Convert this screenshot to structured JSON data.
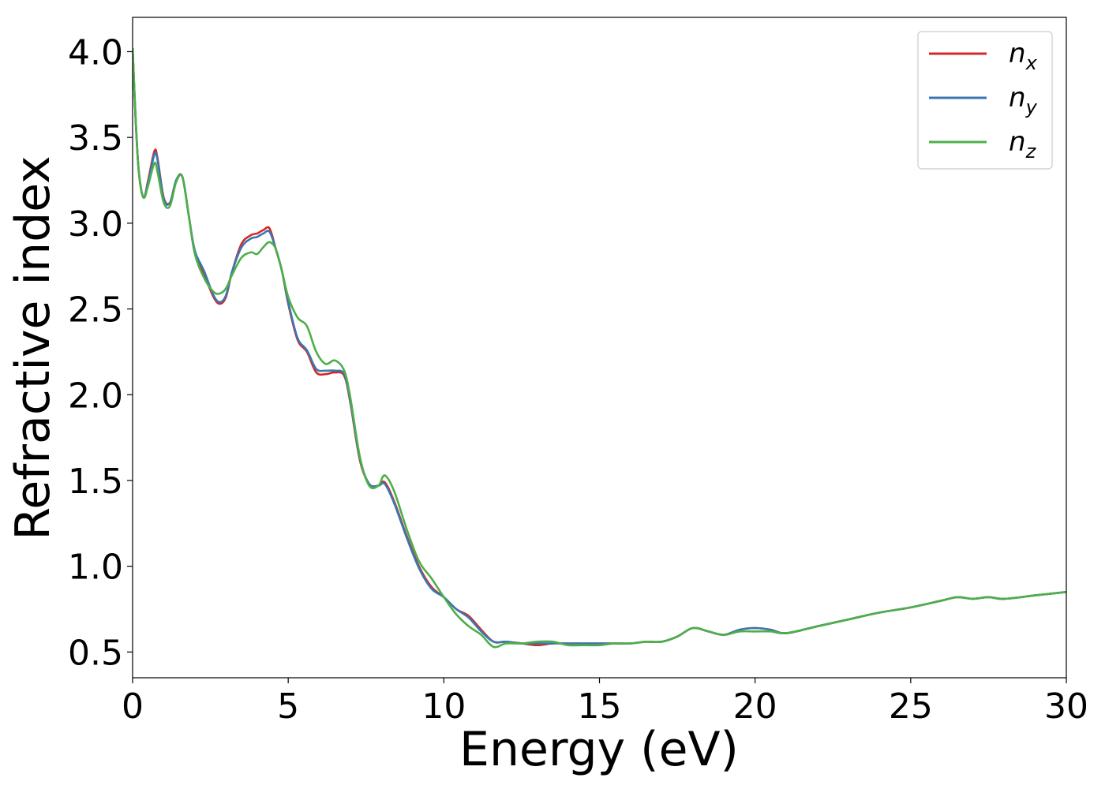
{
  "chart_data": {
    "type": "line",
    "xlabel": "Energy (eV)",
    "ylabel": "Refractive index",
    "xlim": [
      0,
      30
    ],
    "ylim": [
      0.35,
      4.2
    ],
    "xticks": [
      0,
      5,
      10,
      15,
      20,
      25,
      30
    ],
    "xtick_labels": [
      "0",
      "5",
      "10",
      "15",
      "20",
      "25",
      "30"
    ],
    "yticks": [
      0.5,
      1.0,
      1.5,
      2.0,
      2.5,
      3.0,
      3.5,
      4.0
    ],
    "ytick_labels": [
      "0.5",
      "1.0",
      "1.5",
      "2.0",
      "2.5",
      "3.0",
      "3.5",
      "4.0"
    ],
    "grid": false,
    "legend_position": "top-right",
    "series": [
      {
        "name": "n",
        "subscript": "x",
        "color": "#d62728",
        "x": [
          0,
          0.1,
          0.2,
          0.35,
          0.5,
          0.7,
          0.8,
          1.0,
          1.2,
          1.4,
          1.6,
          1.8,
          2.0,
          2.3,
          2.6,
          2.8,
          3.0,
          3.2,
          3.5,
          3.8,
          4.0,
          4.2,
          4.4,
          4.6,
          4.8,
          5.0,
          5.3,
          5.6,
          5.9,
          6.2,
          6.5,
          6.8,
          7.0,
          7.3,
          7.6,
          7.9,
          8.1,
          8.4,
          8.8,
          9.2,
          9.6,
          10.0,
          10.4,
          10.8,
          11.2,
          11.6,
          12.0,
          12.5,
          13.0,
          13.5,
          14.0,
          14.5,
          15.0,
          15.5,
          16.0,
          16.5,
          17.0,
          17.5,
          18.0,
          18.5,
          19.0,
          19.5,
          20.0,
          20.5,
          21.0,
          22.0,
          23.0,
          24.0,
          25.0,
          26.0,
          26.5,
          27.0,
          27.5,
          28.0,
          29.0,
          30.0
        ],
        "y": [
          4.02,
          3.6,
          3.3,
          3.15,
          3.25,
          3.42,
          3.38,
          3.15,
          3.12,
          3.25,
          3.27,
          3.05,
          2.83,
          2.7,
          2.57,
          2.53,
          2.57,
          2.72,
          2.88,
          2.93,
          2.94,
          2.96,
          2.97,
          2.85,
          2.72,
          2.53,
          2.32,
          2.25,
          2.13,
          2.12,
          2.13,
          2.11,
          1.95,
          1.62,
          1.48,
          1.47,
          1.49,
          1.38,
          1.18,
          1.0,
          0.88,
          0.82,
          0.75,
          0.71,
          0.63,
          0.56,
          0.56,
          0.55,
          0.54,
          0.55,
          0.55,
          0.55,
          0.55,
          0.55,
          0.55,
          0.56,
          0.56,
          0.59,
          0.64,
          0.62,
          0.6,
          0.63,
          0.64,
          0.63,
          0.61,
          0.65,
          0.69,
          0.73,
          0.76,
          0.8,
          0.82,
          0.81,
          0.82,
          0.81,
          0.83,
          0.85
        ]
      },
      {
        "name": "n",
        "subscript": "y",
        "color": "#3a77b0",
        "x": [
          0,
          0.1,
          0.2,
          0.35,
          0.5,
          0.7,
          0.8,
          1.0,
          1.2,
          1.4,
          1.6,
          1.8,
          2.0,
          2.3,
          2.6,
          2.8,
          3.0,
          3.2,
          3.5,
          3.8,
          4.0,
          4.2,
          4.4,
          4.6,
          4.8,
          5.0,
          5.3,
          5.6,
          5.9,
          6.2,
          6.5,
          6.8,
          7.0,
          7.3,
          7.6,
          7.9,
          8.1,
          8.4,
          8.8,
          9.2,
          9.6,
          10.0,
          10.4,
          10.8,
          11.2,
          11.6,
          12.0,
          12.5,
          13.0,
          13.5,
          14.0,
          14.5,
          15.0,
          15.5,
          16.0,
          16.5,
          17.0,
          17.5,
          18.0,
          18.5,
          19.0,
          19.5,
          20.0,
          20.5,
          21.0,
          22.0,
          23.0,
          24.0,
          25.0,
          26.0,
          26.5,
          27.0,
          27.5,
          28.0,
          29.0,
          30.0
        ],
        "y": [
          4.02,
          3.6,
          3.3,
          3.15,
          3.24,
          3.4,
          3.37,
          3.14,
          3.12,
          3.25,
          3.27,
          3.05,
          2.84,
          2.72,
          2.58,
          2.54,
          2.58,
          2.72,
          2.86,
          2.91,
          2.92,
          2.94,
          2.95,
          2.85,
          2.72,
          2.54,
          2.33,
          2.26,
          2.15,
          2.14,
          2.14,
          2.12,
          1.96,
          1.63,
          1.48,
          1.47,
          1.48,
          1.37,
          1.17,
          0.99,
          0.87,
          0.82,
          0.75,
          0.7,
          0.62,
          0.56,
          0.56,
          0.55,
          0.55,
          0.55,
          0.55,
          0.55,
          0.55,
          0.55,
          0.55,
          0.56,
          0.56,
          0.59,
          0.64,
          0.62,
          0.6,
          0.63,
          0.64,
          0.63,
          0.61,
          0.65,
          0.69,
          0.73,
          0.76,
          0.8,
          0.82,
          0.81,
          0.82,
          0.81,
          0.83,
          0.85
        ]
      },
      {
        "name": "n",
        "subscript": "z",
        "color": "#4daf4a",
        "x": [
          0,
          0.1,
          0.2,
          0.35,
          0.5,
          0.7,
          0.8,
          1.0,
          1.2,
          1.4,
          1.6,
          1.8,
          2.0,
          2.3,
          2.6,
          2.8,
          3.0,
          3.2,
          3.5,
          3.8,
          4.0,
          4.2,
          4.4,
          4.6,
          4.8,
          5.0,
          5.3,
          5.6,
          5.9,
          6.2,
          6.5,
          6.8,
          7.0,
          7.3,
          7.6,
          7.9,
          8.1,
          8.4,
          8.8,
          9.2,
          9.6,
          10.0,
          10.4,
          10.8,
          11.2,
          11.6,
          12.0,
          12.5,
          13.0,
          13.5,
          14.0,
          14.5,
          15.0,
          15.5,
          16.0,
          16.5,
          17.0,
          17.5,
          18.0,
          18.5,
          19.0,
          19.5,
          20.0,
          20.5,
          21.0,
          22.0,
          23.0,
          24.0,
          25.0,
          26.0,
          26.5,
          27.0,
          27.5,
          28.0,
          29.0,
          30.0
        ],
        "y": [
          4.02,
          3.6,
          3.3,
          3.15,
          3.22,
          3.35,
          3.3,
          3.12,
          3.1,
          3.24,
          3.27,
          3.05,
          2.82,
          2.68,
          2.6,
          2.59,
          2.62,
          2.7,
          2.8,
          2.83,
          2.82,
          2.86,
          2.89,
          2.85,
          2.72,
          2.57,
          2.45,
          2.4,
          2.25,
          2.18,
          2.2,
          2.14,
          1.98,
          1.64,
          1.47,
          1.47,
          1.53,
          1.44,
          1.22,
          1.03,
          0.93,
          0.82,
          0.72,
          0.65,
          0.6,
          0.53,
          0.55,
          0.55,
          0.56,
          0.56,
          0.54,
          0.54,
          0.54,
          0.55,
          0.55,
          0.56,
          0.56,
          0.59,
          0.64,
          0.62,
          0.6,
          0.62,
          0.62,
          0.62,
          0.61,
          0.65,
          0.69,
          0.73,
          0.76,
          0.8,
          0.82,
          0.81,
          0.82,
          0.81,
          0.83,
          0.85
        ]
      }
    ]
  }
}
